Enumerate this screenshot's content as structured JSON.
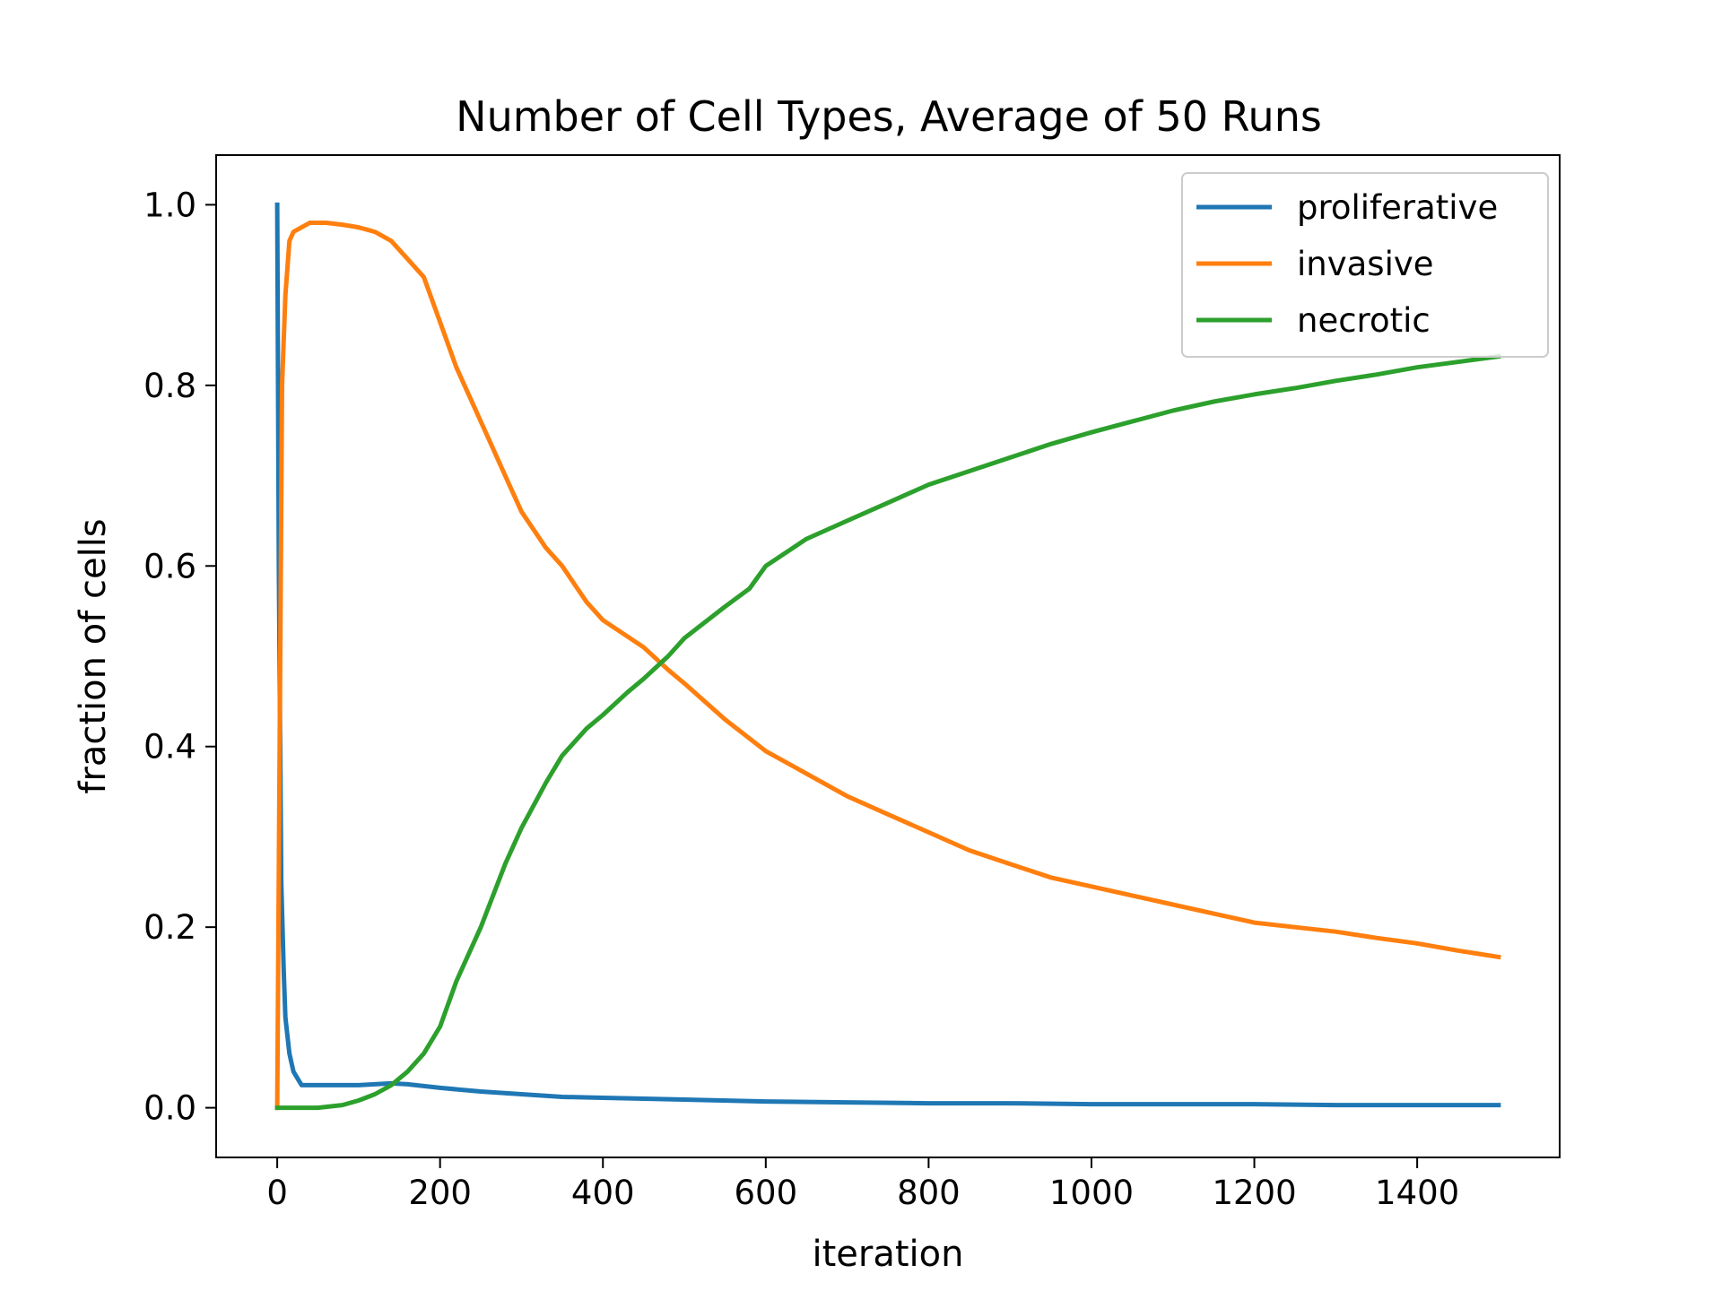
{
  "chart_data": {
    "type": "line",
    "title": "Number of Cell Types, Average of 50 Runs",
    "xlabel": "iteration",
    "ylabel": "fraction of cells",
    "xlim": [
      -75,
      1575
    ],
    "ylim": [
      -0.055,
      1.055
    ],
    "xticks": [
      0,
      200,
      400,
      600,
      800,
      1000,
      1200,
      1400
    ],
    "xtick_labels": [
      "0",
      "200",
      "400",
      "600",
      "800",
      "1000",
      "1200",
      "1400"
    ],
    "yticks": [
      0.0,
      0.2,
      0.4,
      0.6,
      0.8,
      1.0
    ],
    "ytick_labels": [
      "0.0",
      "0.2",
      "0.4",
      "0.6",
      "0.8",
      "1.0"
    ],
    "grid": false,
    "legend_position": "top-right",
    "series": [
      {
        "name": "proliferative",
        "color": "#1f77b4",
        "x": [
          0,
          2,
          5,
          8,
          10,
          15,
          20,
          30,
          40,
          60,
          80,
          100,
          120,
          140,
          160,
          180,
          200,
          250,
          300,
          350,
          400,
          450,
          500,
          600,
          700,
          800,
          900,
          1000,
          1100,
          1200,
          1300,
          1400,
          1500
        ],
        "y": [
          1.0,
          0.6,
          0.25,
          0.15,
          0.1,
          0.06,
          0.04,
          0.025,
          0.025,
          0.025,
          0.025,
          0.025,
          0.026,
          0.027,
          0.026,
          0.024,
          0.022,
          0.018,
          0.015,
          0.012,
          0.011,
          0.01,
          0.009,
          0.007,
          0.006,
          0.005,
          0.005,
          0.004,
          0.004,
          0.004,
          0.003,
          0.003,
          0.003
        ]
      },
      {
        "name": "invasive",
        "color": "#ff7f0e",
        "x": [
          0,
          3,
          6,
          10,
          15,
          20,
          30,
          40,
          60,
          80,
          100,
          120,
          140,
          160,
          180,
          200,
          220,
          250,
          280,
          300,
          330,
          350,
          380,
          400,
          450,
          480,
          500,
          550,
          600,
          650,
          700,
          750,
          800,
          850,
          900,
          950,
          1000,
          1050,
          1100,
          1150,
          1200,
          1250,
          1300,
          1350,
          1400,
          1450,
          1500
        ],
        "y": [
          0.0,
          0.4,
          0.8,
          0.9,
          0.96,
          0.97,
          0.975,
          0.98,
          0.98,
          0.978,
          0.975,
          0.97,
          0.96,
          0.94,
          0.92,
          0.87,
          0.82,
          0.76,
          0.7,
          0.66,
          0.62,
          0.6,
          0.56,
          0.54,
          0.51,
          0.485,
          0.47,
          0.43,
          0.395,
          0.37,
          0.345,
          0.325,
          0.305,
          0.285,
          0.27,
          0.255,
          0.245,
          0.235,
          0.225,
          0.215,
          0.205,
          0.2,
          0.195,
          0.188,
          0.182,
          0.174,
          0.167
        ]
      },
      {
        "name": "necrotic",
        "color": "#2ca02c",
        "x": [
          0,
          50,
          80,
          100,
          120,
          140,
          160,
          180,
          200,
          220,
          250,
          280,
          300,
          330,
          350,
          380,
          400,
          430,
          450,
          480,
          500,
          550,
          580,
          600,
          650,
          700,
          750,
          800,
          850,
          900,
          950,
          1000,
          1050,
          1100,
          1150,
          1200,
          1250,
          1300,
          1350,
          1400,
          1450,
          1500
        ],
        "y": [
          0.0,
          0.0,
          0.003,
          0.008,
          0.015,
          0.025,
          0.04,
          0.06,
          0.09,
          0.14,
          0.2,
          0.27,
          0.31,
          0.36,
          0.39,
          0.42,
          0.435,
          0.46,
          0.475,
          0.5,
          0.52,
          0.555,
          0.575,
          0.6,
          0.63,
          0.65,
          0.67,
          0.69,
          0.705,
          0.72,
          0.735,
          0.748,
          0.76,
          0.772,
          0.782,
          0.79,
          0.797,
          0.805,
          0.812,
          0.82,
          0.826,
          0.832
        ]
      }
    ]
  }
}
